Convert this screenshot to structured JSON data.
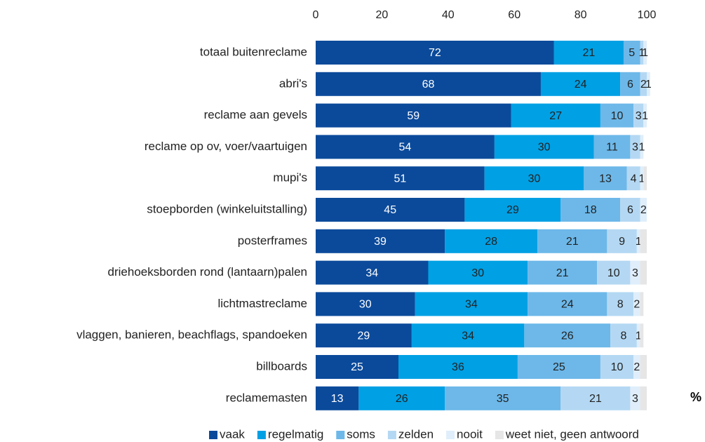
{
  "chart_data": {
    "type": "stacked_barh",
    "categories": [
      "totaal buitenreclame",
      "abri's",
      "reclame aan gevels",
      "reclame op ov, voer/vaartuigen",
      "mupi's",
      "stoepborden (winkeluitstalling)",
      "posterframes",
      "driehoeksborden rond (lantaarn)palen",
      "lichtmastreclame",
      "vlaggen, banieren, beachflags, spandoeken",
      "billboards",
      "reclamemasten"
    ],
    "series": [
      {
        "name": "vaak",
        "color": "#0b4a9b",
        "values": [
          72,
          68,
          59,
          54,
          51,
          45,
          39,
          34,
          30,
          29,
          25,
          13
        ]
      },
      {
        "name": "regelmatig",
        "color": "#00a0e4",
        "values": [
          21,
          24,
          27,
          30,
          30,
          29,
          28,
          30,
          34,
          34,
          36,
          26
        ]
      },
      {
        "name": "soms",
        "color": "#6db8e9",
        "values": [
          5,
          6,
          10,
          11,
          13,
          18,
          21,
          21,
          24,
          26,
          25,
          35
        ]
      },
      {
        "name": "zelden",
        "color": "#b4d8f3",
        "values": [
          1,
          2,
          3,
          3,
          4,
          6,
          9,
          10,
          8,
          8,
          10,
          21
        ]
      },
      {
        "name": "nooit",
        "color": "#dfeefa",
        "values": [
          1,
          1,
          1,
          1,
          1,
          2,
          1,
          3,
          2,
          1,
          2,
          3
        ]
      },
      {
        "name": "weet niet, geen antwoord",
        "color": "#e6e6e6",
        "values": [
          0,
          0,
          0,
          0,
          1,
          0,
          2,
          2,
          1,
          1,
          2,
          2
        ]
      }
    ],
    "xlim": [
      0,
      100
    ],
    "xticks": [
      0,
      20,
      40,
      60,
      80,
      100
    ],
    "unit": "%",
    "legend": "bottom"
  }
}
